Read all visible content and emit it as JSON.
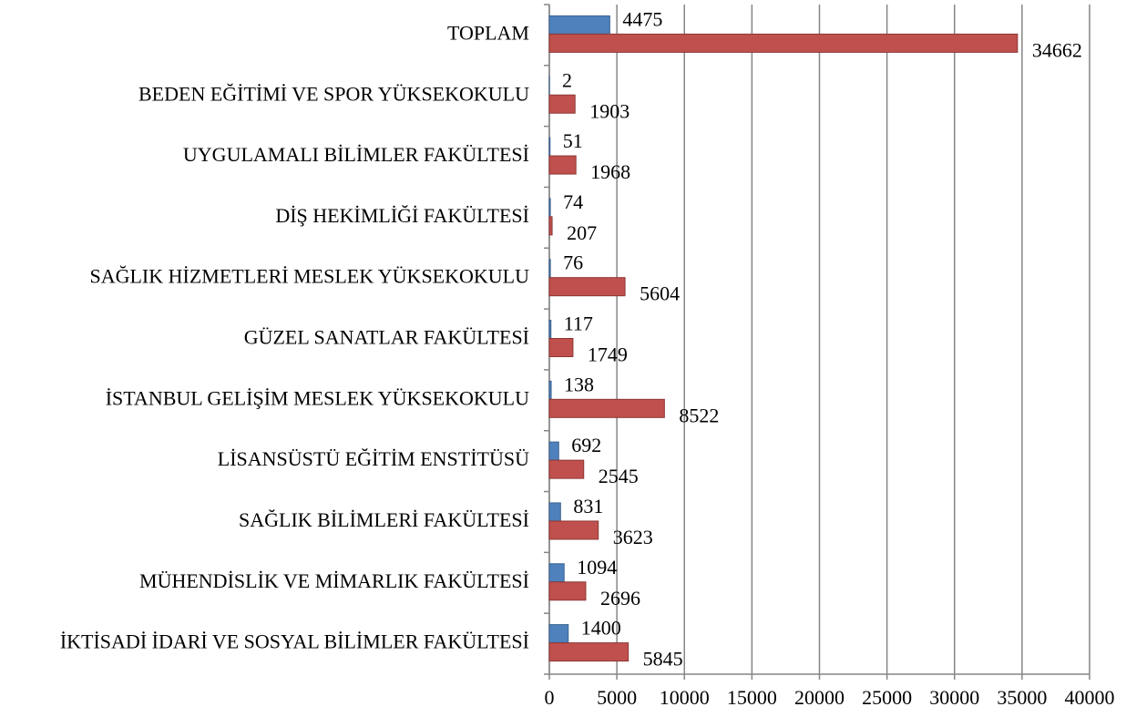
{
  "chart_data": {
    "type": "bar",
    "orientation": "horizontal",
    "categories": [
      "TOPLAM",
      "BEDEN EĞİTİMİ VE SPOR YÜKSEKOKULU",
      "UYGULAMALI BİLİMLER FAKÜLTESİ",
      "DİŞ HEKİMLİĞİ FAKÜLTESİ",
      "SAĞLIK HİZMETLERİ MESLEK YÜKSEKOKULU",
      "GÜZEL SANATLAR FAKÜLTESİ",
      "İSTANBUL GELİŞİM MESLEK YÜKSEKOKULU",
      "LİSANSÜSTÜ EĞİTİM ENSTİTÜSÜ",
      "SAĞLIK BİLİMLERİ FAKÜLTESİ",
      "MÜHENDİSLİK VE MİMARLIK FAKÜLTESİ",
      "İKTİSADİ İDARİ VE SOSYAL BİLİMLER FAKÜLTESİ"
    ],
    "series": [
      {
        "color": "#4f81bd",
        "values": [
          4475,
          2,
          51,
          74,
          76,
          117,
          138,
          692,
          831,
          1094,
          1400
        ]
      },
      {
        "color": "#c0504d",
        "values": [
          34662,
          1903,
          1968,
          207,
          5604,
          1749,
          8522,
          2545,
          3623,
          2696,
          5845
        ]
      }
    ],
    "xlim": [
      0,
      40000
    ],
    "xticks": [
      0,
      5000,
      10000,
      15000,
      20000,
      25000,
      30000,
      35000,
      40000
    ],
    "grid": true
  }
}
